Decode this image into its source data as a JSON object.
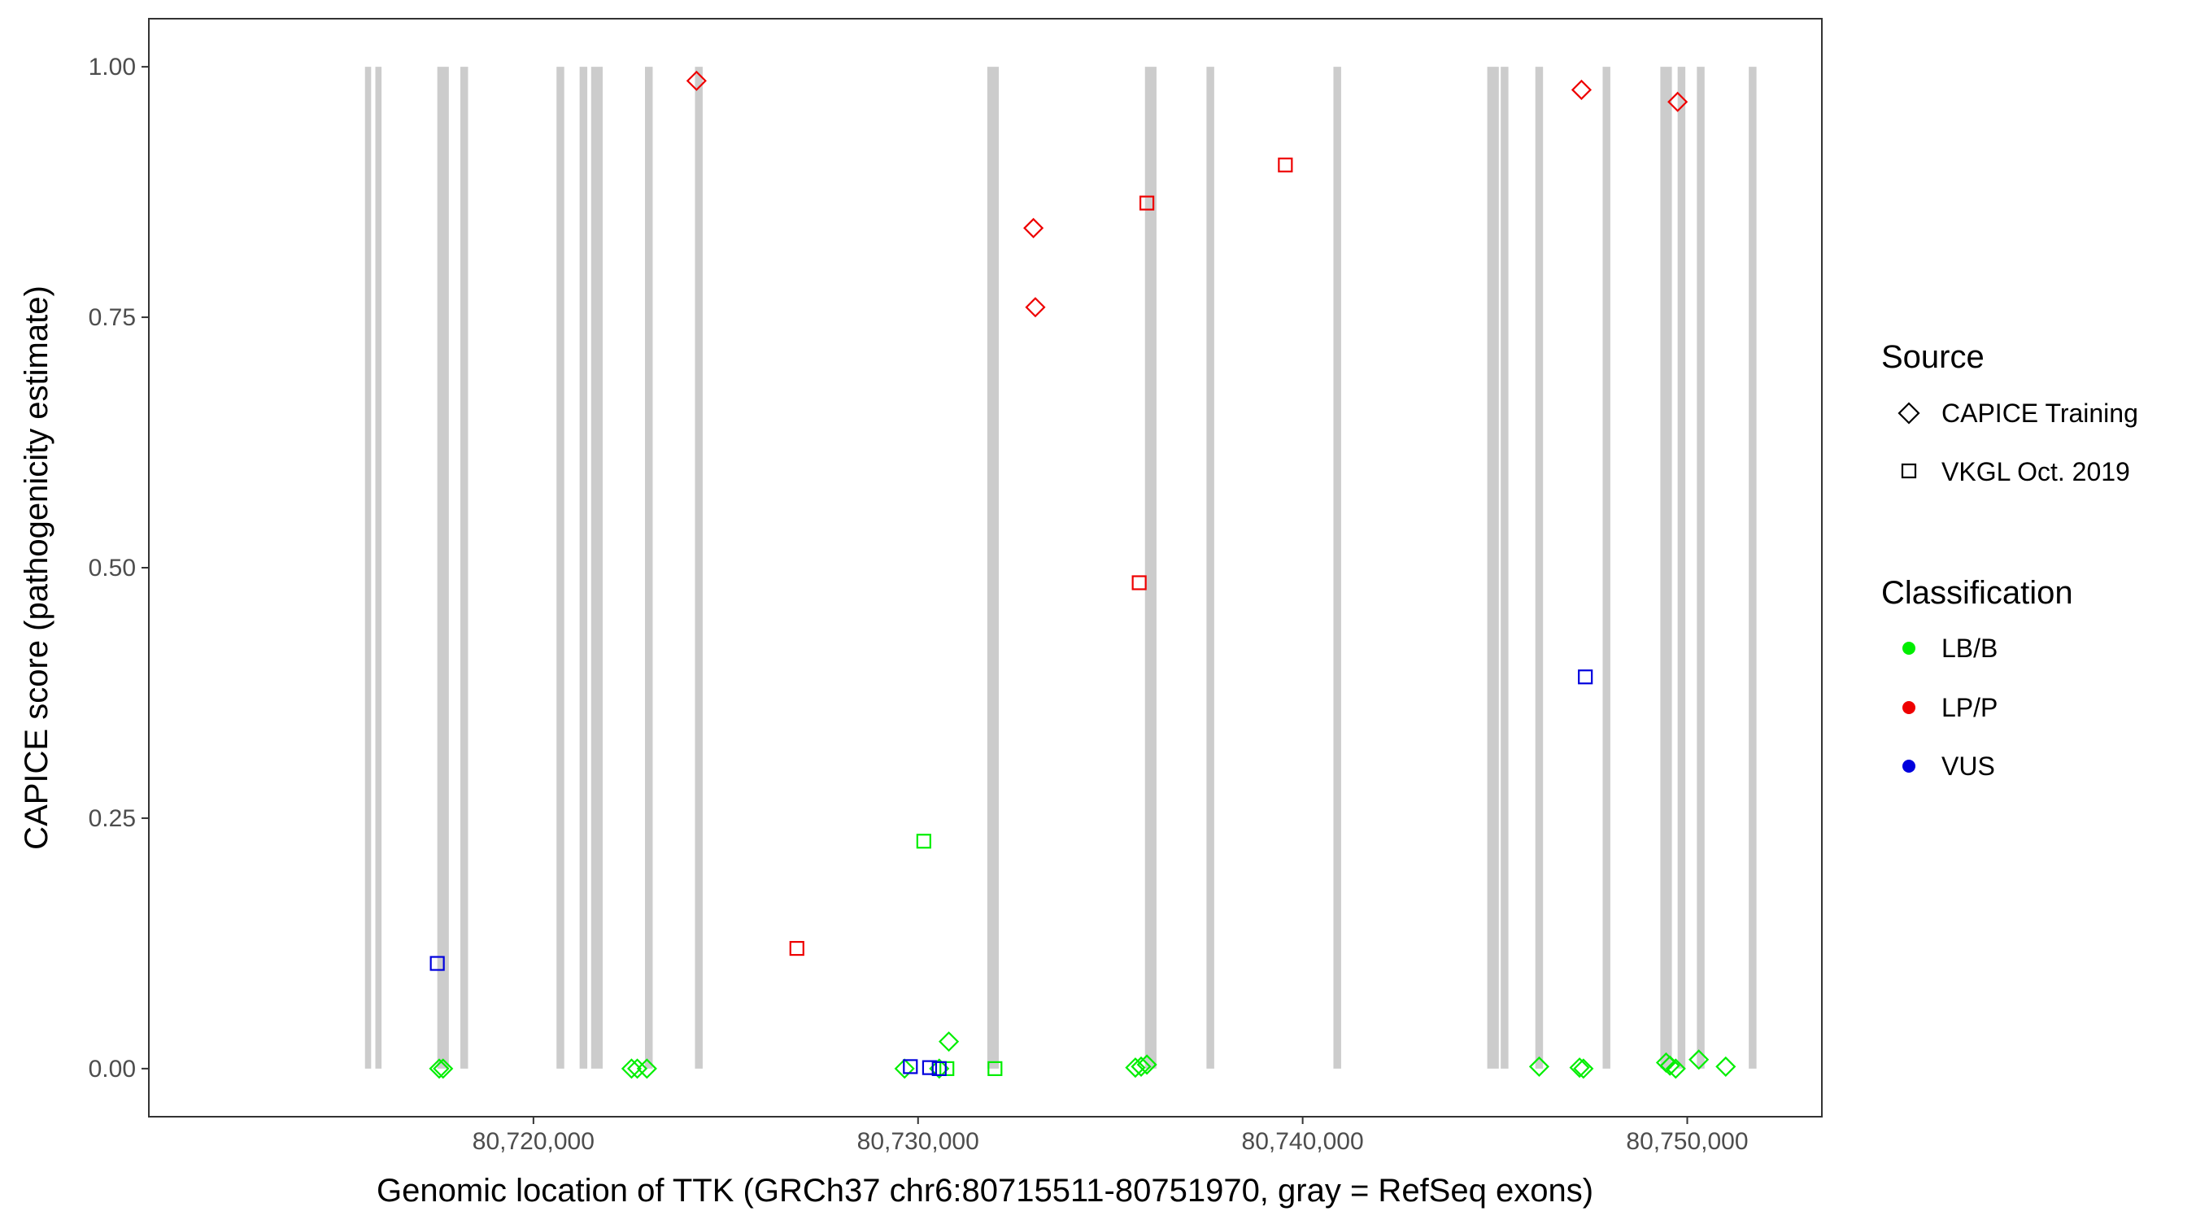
{
  "chart_data": {
    "type": "scatter",
    "xlabel": "Genomic location of TTK (GRCh37 chr6:80715511-80751970, gray = RefSeq exons)",
    "ylabel": "CAPICE score (pathogenicity estimate)",
    "xlim": [
      80710000,
      80753500
    ],
    "ylim": [
      -0.048,
      1.048
    ],
    "x_ticks": [
      80720000,
      80730000,
      80740000,
      80750000
    ],
    "x_tick_labels": [
      "80,720,000",
      "80,730,000",
      "80,740,000",
      "80,750,000"
    ],
    "y_ticks": [
      0,
      0.25,
      0.5,
      0.75,
      1.0
    ],
    "y_tick_labels": [
      "0.00",
      "0.25",
      "0.50",
      "0.75",
      "1.00"
    ],
    "exons": [
      {
        "start": 80715620,
        "end": 80715780
      },
      {
        "start": 80715890,
        "end": 80716050
      },
      {
        "start": 80717500,
        "end": 80717800
      },
      {
        "start": 80718100,
        "end": 80718300
      },
      {
        "start": 80720600,
        "end": 80720800
      },
      {
        "start": 80721200,
        "end": 80721400
      },
      {
        "start": 80721500,
        "end": 80721800
      },
      {
        "start": 80722900,
        "end": 80723100
      },
      {
        "start": 80724200,
        "end": 80724400
      },
      {
        "start": 80731800,
        "end": 80732100
      },
      {
        "start": 80735900,
        "end": 80736200
      },
      {
        "start": 80737500,
        "end": 80737700
      },
      {
        "start": 80740800,
        "end": 80741000
      },
      {
        "start": 80744800,
        "end": 80745100
      },
      {
        "start": 80745150,
        "end": 80745350
      },
      {
        "start": 80746050,
        "end": 80746250
      },
      {
        "start": 80747800,
        "end": 80748000
      },
      {
        "start": 80749300,
        "end": 80749600
      },
      {
        "start": 80749750,
        "end": 80749950
      },
      {
        "start": 80750250,
        "end": 80750450
      },
      {
        "start": 80751600,
        "end": 80751800
      }
    ],
    "legend": {
      "position": "right",
      "source_title": "Source",
      "source_entries": [
        {
          "label": "CAPICE Training",
          "shape": "diamond"
        },
        {
          "label": "VKGL Oct. 2019",
          "shape": "square"
        }
      ],
      "class_title": "Classification",
      "class_entries": [
        {
          "label": "LB/B",
          "color": "#00ee00"
        },
        {
          "label": "LP/P",
          "color": "#ee0000"
        },
        {
          "label": "VUS",
          "color": "#0000dd"
        }
      ]
    },
    "colors": {
      "LB/B": "#00ee00",
      "LP/P": "#ee0000",
      "VUS": "#0000dd",
      "exon": "#cccccc"
    },
    "points": [
      {
        "x": 80724240,
        "y": 0.986,
        "source": "CAPICE Training",
        "class": "LP/P"
      },
      {
        "x": 80747250,
        "y": 0.977,
        "source": "CAPICE Training",
        "class": "LP/P"
      },
      {
        "x": 80749750,
        "y": 0.965,
        "source": "CAPICE Training",
        "class": "LP/P"
      },
      {
        "x": 80739550,
        "y": 0.902,
        "source": "VKGL Oct. 2019",
        "class": "LP/P"
      },
      {
        "x": 80735950,
        "y": 0.864,
        "source": "VKGL Oct. 2019",
        "class": "LP/P"
      },
      {
        "x": 80733000,
        "y": 0.839,
        "source": "CAPICE Training",
        "class": "LP/P"
      },
      {
        "x": 80733050,
        "y": 0.76,
        "source": "CAPICE Training",
        "class": "LP/P"
      },
      {
        "x": 80735750,
        "y": 0.485,
        "source": "VKGL Oct. 2019",
        "class": "LP/P"
      },
      {
        "x": 80747350,
        "y": 0.391,
        "source": "VKGL Oct. 2019",
        "class": "VUS"
      },
      {
        "x": 80730150,
        "y": 0.227,
        "source": "VKGL Oct. 2019",
        "class": "LB/B"
      },
      {
        "x": 80726850,
        "y": 0.12,
        "source": "VKGL Oct. 2019",
        "class": "LP/P"
      },
      {
        "x": 80717500,
        "y": 0.105,
        "source": "VKGL Oct. 2019",
        "class": "VUS"
      },
      {
        "x": 80717550,
        "y": 0.0,
        "source": "CAPICE Training",
        "class": "LB/B"
      },
      {
        "x": 80717650,
        "y": 0.0,
        "source": "CAPICE Training",
        "class": "LB/B"
      },
      {
        "x": 80722550,
        "y": 0.0,
        "source": "CAPICE Training",
        "class": "LB/B"
      },
      {
        "x": 80722700,
        "y": 0.0,
        "source": "CAPICE Training",
        "class": "LB/B"
      },
      {
        "x": 80722950,
        "y": 0.0,
        "source": "CAPICE Training",
        "class": "LB/B"
      },
      {
        "x": 80729650,
        "y": 0.0,
        "source": "CAPICE Training",
        "class": "LB/B"
      },
      {
        "x": 80730800,
        "y": 0.027,
        "source": "CAPICE Training",
        "class": "LB/B"
      },
      {
        "x": 80730750,
        "y": 0.0,
        "source": "VKGL Oct. 2019",
        "class": "LB/B"
      },
      {
        "x": 80730550,
        "y": 0.0,
        "source": "CAPICE Training",
        "class": "LB/B"
      },
      {
        "x": 80732000,
        "y": 0.0,
        "source": "VKGL Oct. 2019",
        "class": "LB/B"
      },
      {
        "x": 80729800,
        "y": 0.002,
        "source": "VKGL Oct. 2019",
        "class": "VUS"
      },
      {
        "x": 80730300,
        "y": 0.001,
        "source": "VKGL Oct. 2019",
        "class": "VUS"
      },
      {
        "x": 80730550,
        "y": 0.0,
        "source": "VKGL Oct. 2019",
        "class": "VUS"
      },
      {
        "x": 80735650,
        "y": 0.001,
        "source": "CAPICE Training",
        "class": "LB/B"
      },
      {
        "x": 80735800,
        "y": 0.002,
        "source": "CAPICE Training",
        "class": "LB/B"
      },
      {
        "x": 80735950,
        "y": 0.004,
        "source": "CAPICE Training",
        "class": "LB/B"
      },
      {
        "x": 80746150,
        "y": 0.002,
        "source": "CAPICE Training",
        "class": "LB/B"
      },
      {
        "x": 80747200,
        "y": 0.001,
        "source": "CAPICE Training",
        "class": "LB/B"
      },
      {
        "x": 80747300,
        "y": 0.0,
        "source": "CAPICE Training",
        "class": "LB/B"
      },
      {
        "x": 80749450,
        "y": 0.006,
        "source": "CAPICE Training",
        "class": "LB/B"
      },
      {
        "x": 80749550,
        "y": 0.003,
        "source": "CAPICE Training",
        "class": "LB/B"
      },
      {
        "x": 80749700,
        "y": 0.0,
        "source": "CAPICE Training",
        "class": "LB/B"
      },
      {
        "x": 80750300,
        "y": 0.009,
        "source": "CAPICE Training",
        "class": "LB/B"
      },
      {
        "x": 80751000,
        "y": 0.002,
        "source": "CAPICE Training",
        "class": "LB/B"
      }
    ]
  }
}
